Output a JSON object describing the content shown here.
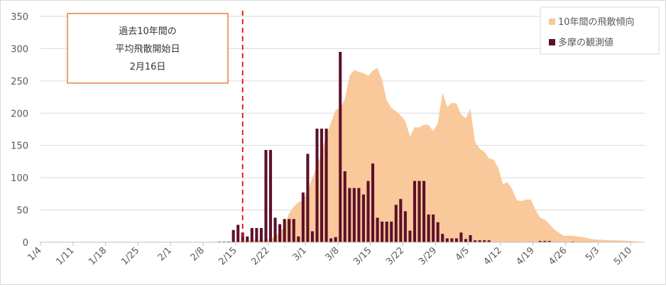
{
  "chart_data": {
    "type": "bar",
    "title": "",
    "xlabel": "",
    "ylabel": "",
    "ylim": [
      0,
      350
    ],
    "yticks": [
      0,
      50,
      100,
      150,
      200,
      250,
      300,
      350
    ],
    "grid": true,
    "legend_position": "top-right",
    "x_tick_labels": [
      "1/4",
      "1/11",
      "1/18",
      "1/25",
      "2/1",
      "2/8",
      "2/15",
      "2/22",
      "3/1",
      "3/8",
      "3/15",
      "3/22",
      "3/29",
      "4/5",
      "4/12",
      "4/19",
      "4/26",
      "5/3",
      "5/10"
    ],
    "annotation": {
      "lines": [
        "過去10年間の",
        "平均飛散開始日",
        "2月16日"
      ],
      "marker_date": "2/16"
    },
    "series": [
      {
        "name": "10年間の飛散傾向",
        "type": "area",
        "color": "#f9c89b",
        "points": [
          [
            "2/9",
            0
          ],
          [
            "2/14",
            1
          ],
          [
            "2/16",
            2
          ],
          [
            "2/18",
            3
          ],
          [
            "2/20",
            4
          ],
          [
            "2/22",
            5
          ],
          [
            "2/24",
            15
          ],
          [
            "2/25",
            25
          ],
          [
            "2/26",
            45
          ],
          [
            "2/27",
            55
          ],
          [
            "2/28",
            62
          ],
          [
            "2/29",
            65
          ],
          [
            "3/1",
            80
          ],
          [
            "3/2",
            100
          ],
          [
            "3/3",
            118
          ],
          [
            "3/4",
            140
          ],
          [
            "3/5",
            165
          ],
          [
            "3/6",
            185
          ],
          [
            "3/7",
            205
          ],
          [
            "3/8",
            208
          ],
          [
            "3/9",
            222
          ],
          [
            "3/10",
            258
          ],
          [
            "3/11",
            267
          ],
          [
            "3/12",
            264
          ],
          [
            "3/13",
            262
          ],
          [
            "3/14",
            258
          ],
          [
            "3/15",
            266
          ],
          [
            "3/16",
            270
          ],
          [
            "3/17",
            252
          ],
          [
            "3/18",
            220
          ],
          [
            "3/19",
            208
          ],
          [
            "3/20",
            203
          ],
          [
            "3/21",
            196
          ],
          [
            "3/22",
            188
          ],
          [
            "3/23",
            164
          ],
          [
            "3/24",
            178
          ],
          [
            "3/25",
            178
          ],
          [
            "3/26",
            182
          ],
          [
            "3/27",
            182
          ],
          [
            "3/28",
            172
          ],
          [
            "3/29",
            185
          ],
          [
            "3/30",
            232
          ],
          [
            "3/31",
            210
          ],
          [
            "4/1",
            216
          ],
          [
            "4/2",
            215
          ],
          [
            "4/3",
            198
          ],
          [
            "4/4",
            192
          ],
          [
            "4/5",
            207
          ],
          [
            "4/6",
            155
          ],
          [
            "4/7",
            145
          ],
          [
            "4/8",
            140
          ],
          [
            "4/9",
            130
          ],
          [
            "4/10",
            128
          ],
          [
            "4/11",
            115
          ],
          [
            "4/12",
            90
          ],
          [
            "4/13",
            93
          ],
          [
            "4/14",
            82
          ],
          [
            "4/15",
            65
          ],
          [
            "4/16",
            64
          ],
          [
            "4/17",
            66
          ],
          [
            "4/18",
            66
          ],
          [
            "4/19",
            50
          ],
          [
            "4/20",
            38
          ],
          [
            "4/21",
            35
          ],
          [
            "4/22",
            28
          ],
          [
            "4/23",
            20
          ],
          [
            "4/24",
            15
          ],
          [
            "4/25",
            10
          ],
          [
            "4/26",
            10
          ],
          [
            "4/27",
            10
          ],
          [
            "4/28",
            9
          ],
          [
            "4/29",
            8
          ],
          [
            "4/30",
            7
          ],
          [
            "5/1",
            5
          ],
          [
            "5/2",
            4
          ],
          [
            "5/3",
            4
          ],
          [
            "5/5",
            3
          ],
          [
            "5/7",
            3
          ],
          [
            "5/9",
            2
          ],
          [
            "5/11",
            1
          ],
          [
            "5/12",
            0
          ]
        ]
      },
      {
        "name": "多摩の観測値",
        "type": "bar",
        "color": "#5c1029",
        "points": [
          [
            "2/11",
            1
          ],
          [
            "2/12",
            1
          ],
          [
            "2/13",
            1
          ],
          [
            "2/14",
            19
          ],
          [
            "2/15",
            27
          ],
          [
            "2/16",
            15
          ],
          [
            "2/17",
            9
          ],
          [
            "2/18",
            22
          ],
          [
            "2/19",
            22
          ],
          [
            "2/20",
            22
          ],
          [
            "2/21",
            143
          ],
          [
            "2/22",
            143
          ],
          [
            "2/23",
            38
          ],
          [
            "2/24",
            28
          ],
          [
            "2/25",
            36
          ],
          [
            "2/26",
            36
          ],
          [
            "2/27",
            36
          ],
          [
            "2/28",
            9
          ],
          [
            "2/29",
            77
          ],
          [
            "3/1",
            137
          ],
          [
            "3/2",
            17
          ],
          [
            "3/3",
            176
          ],
          [
            "3/4",
            176
          ],
          [
            "3/5",
            176
          ],
          [
            "3/6",
            6
          ],
          [
            "3/7",
            8
          ],
          [
            "3/8",
            295
          ],
          [
            "3/9",
            110
          ],
          [
            "3/10",
            84
          ],
          [
            "3/11",
            84
          ],
          [
            "3/12",
            84
          ],
          [
            "3/13",
            74
          ],
          [
            "3/14",
            95
          ],
          [
            "3/15",
            122
          ],
          [
            "3/16",
            38
          ],
          [
            "3/17",
            32
          ],
          [
            "3/18",
            32
          ],
          [
            "3/19",
            32
          ],
          [
            "3/20",
            58
          ],
          [
            "3/21",
            67
          ],
          [
            "3/22",
            48
          ],
          [
            "3/23",
            18
          ],
          [
            "3/24",
            95
          ],
          [
            "3/25",
            95
          ],
          [
            "3/26",
            95
          ],
          [
            "3/27",
            43
          ],
          [
            "3/28",
            43
          ],
          [
            "3/29",
            31
          ],
          [
            "3/30",
            13
          ],
          [
            "3/31",
            6
          ],
          [
            "4/1",
            6
          ],
          [
            "4/2",
            6
          ],
          [
            "4/3",
            15
          ],
          [
            "4/4",
            5
          ],
          [
            "4/5",
            11
          ],
          [
            "4/6",
            3
          ],
          [
            "4/7",
            3
          ],
          [
            "4/8",
            3
          ],
          [
            "4/9",
            3
          ],
          [
            "4/20",
            2
          ],
          [
            "4/21",
            2
          ],
          [
            "4/22",
            2
          ],
          [
            "4/27",
            1
          ]
        ]
      }
    ]
  }
}
